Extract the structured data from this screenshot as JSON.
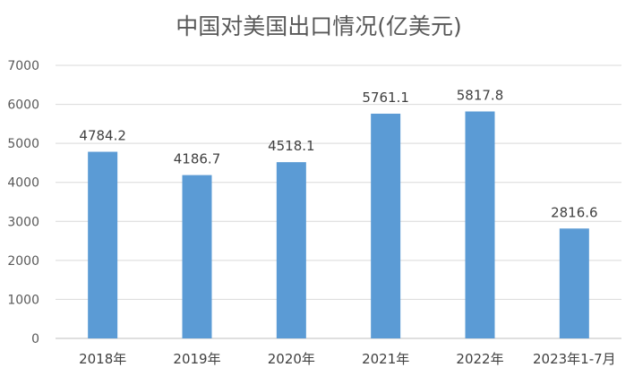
{
  "chart_data": {
    "type": "bar",
    "title": "中国对美国出口情况(亿美元)",
    "categories": [
      "2018年",
      "2019年",
      "2020年",
      "2021年",
      "2022年",
      "2023年1-7月"
    ],
    "values": [
      4784.2,
      4186.7,
      4518.1,
      5761.1,
      5817.8,
      2816.6
    ],
    "value_labels": [
      "4784.2",
      "4186.7",
      "4518.1",
      "5761.1",
      "5817.8",
      "2816.6"
    ],
    "ylim": [
      0,
      7000
    ],
    "yticks": [
      0,
      1000,
      2000,
      3000,
      4000,
      5000,
      6000,
      7000
    ],
    "xlabel": "",
    "ylabel": "",
    "grid": true,
    "legend": "none",
    "bar_color": "#5b9bd5"
  }
}
